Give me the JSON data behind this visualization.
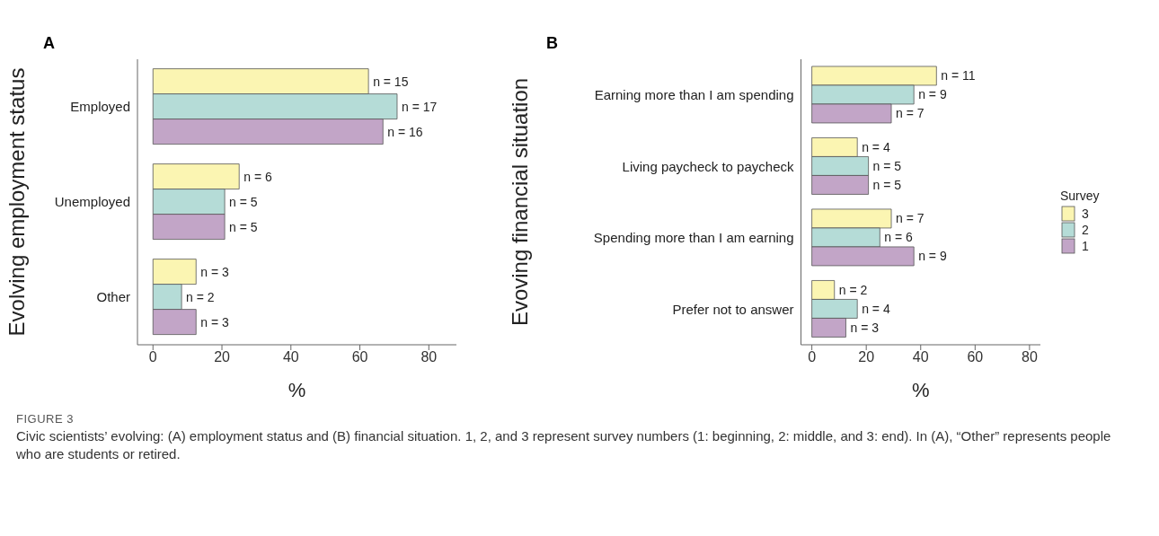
{
  "chart_data": [
    {
      "type": "bar",
      "orientation": "horizontal",
      "title": "A",
      "ylabel": "Evolving employment status",
      "xlabel": "%",
      "categories": [
        "Employed",
        "Unemployed",
        "Other"
      ],
      "series": [
        {
          "color": "#fbf5b2",
          "values": [
            62.5,
            25,
            12.5
          ]
        },
        {
          "color": "#b5dcd7",
          "values": [
            70.8,
            20.8,
            8.3
          ]
        },
        {
          "color": "#c2a5c7",
          "values": [
            66.7,
            20.8,
            12.5
          ]
        }
      ],
      "xlim": [
        -4.5,
        88
      ],
      "xticks": [
        0,
        20,
        40,
        60,
        80
      ],
      "legend": false,
      "annotations": [
        "n = 15",
        "n = 6",
        "n = 3",
        "n = 17",
        "n = 5",
        "n = 2",
        "n = 16",
        "n = 5",
        "n = 3",
        "FIGURE 3",
        "Civic scientists’ evolving: (A) employment status and (B) financial situation. 1, 2, and 3 represent survey numbers (1: beginning, 2: middle, and 3: end). In (A), “Other” represents people who are students or retired."
      ]
    },
    {
      "type": "bar",
      "orientation": "horizontal",
      "title": "B",
      "ylabel": "Evoving financial situation",
      "xlabel": "%",
      "legend_title": "Survey",
      "categories": [
        "Earning more than I am spending",
        "Living paycheck to paycheck",
        "Spending more than I am earning",
        "Prefer not to answer"
      ],
      "series": [
        {
          "name": "3",
          "color": "#fbf5b2",
          "values": [
            45.8,
            16.7,
            29.2,
            8.3
          ]
        },
        {
          "name": "2",
          "color": "#b5dcd7",
          "values": [
            37.5,
            20.8,
            25,
            16.7
          ]
        },
        {
          "name": "1",
          "color": "#c2a5c7",
          "values": [
            29.2,
            20.8,
            37.5,
            12.5
          ]
        }
      ],
      "xlim": [
        -4,
        84
      ],
      "xticks": [
        0,
        20,
        40,
        60,
        80
      ],
      "legend": "right",
      "annotations": [
        "n = 11",
        "n = 4",
        "n = 7",
        "n = 2",
        "n = 9",
        "n = 5",
        "n = 6",
        "n = 4",
        "n = 7",
        "n = 5",
        "n = 9",
        "n = 3"
      ]
    }
  ]
}
